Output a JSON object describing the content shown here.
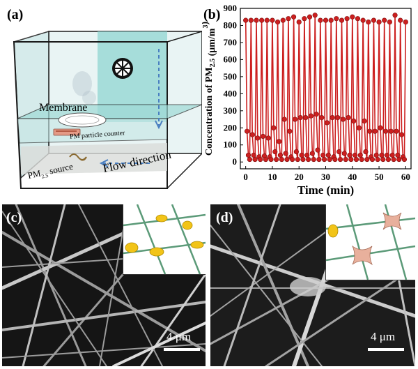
{
  "panels": {
    "a": {
      "label": "(a)",
      "membrane_label": "Membrane",
      "counter_label": "PM particle counter",
      "source_label_main": "PM",
      "source_label_sub": "2.5",
      "source_label_rest": " source",
      "flow_label": "Flow direction",
      "icons": [
        "fan-icon",
        "membrane-disc",
        "particle-counter-device",
        "pm-source-coil",
        "flow-arrows"
      ],
      "colors": {
        "box_edge": "#1a1a1a",
        "water": "#8fd6d2",
        "arrow": "#4a7fc1"
      }
    },
    "b": {
      "label": "(b)"
    },
    "c": {
      "label": "(c)",
      "scale": "4 μm"
    },
    "d": {
      "label": "(d)",
      "scale": "4 μm"
    }
  },
  "chart_data": {
    "type": "line",
    "xlabel": "Time (min)",
    "ylabel_main": "Concentration of PM",
    "ylabel_sub": "2.5",
    "ylabel_unit": " (μm/m",
    "ylabel_unit_sup": "3",
    "ylabel_close": ")",
    "xlim": [
      -2,
      62
    ],
    "ylim": [
      -40,
      900
    ],
    "xticks": [
      0,
      10,
      20,
      30,
      40,
      50,
      60
    ],
    "yticks": [
      0,
      100,
      200,
      300,
      400,
      500,
      600,
      700,
      800,
      900
    ],
    "grid": false,
    "legend": "none",
    "color": "#cc1f1f",
    "series": [
      {
        "x": [
          0,
          0.5,
          1,
          1.5,
          2,
          2.5,
          3,
          3.5,
          4,
          4.5,
          5,
          5.5,
          6,
          6.5,
          7,
          7.5,
          8,
          8.5,
          9,
          9.5,
          10,
          10.5,
          11,
          11.5,
          12,
          12.5,
          13,
          13.5,
          14,
          14.5,
          15,
          15.5,
          16,
          16.5,
          17,
          17.5,
          18,
          18.5,
          19,
          19.5,
          20,
          20.5,
          21,
          21.5,
          22,
          22.5,
          23,
          23.5,
          24,
          24.5,
          25,
          25.5,
          26,
          26.5,
          27,
          27.5,
          28,
          28.5,
          29,
          29.5,
          30,
          30.5,
          31,
          31.5,
          32,
          32.5,
          33,
          33.5,
          34,
          34.5,
          35,
          35.5,
          36,
          36.5,
          37,
          37.5,
          38,
          38.5,
          39,
          39.5,
          40,
          40.5,
          41,
          41.5,
          42,
          42.5,
          43,
          43.5,
          44,
          44.5,
          45,
          45.5,
          46,
          46.5,
          47,
          47.5,
          48,
          48.5,
          49,
          49.5,
          50,
          50.5,
          51,
          51.5,
          52,
          52.5,
          53,
          53.5,
          54,
          54.5,
          55,
          55.5,
          56,
          56.5,
          57,
          57.5,
          58,
          58.5,
          59,
          59.5,
          60
        ],
        "y": [
          830,
          180,
          40,
          15,
          830,
          160,
          40,
          15,
          830,
          140,
          30,
          15,
          830,
          150,
          35,
          15,
          830,
          140,
          30,
          15,
          830,
          200,
          60,
          15,
          820,
          120,
          40,
          15,
          830,
          250,
          50,
          15,
          840,
          180,
          30,
          15,
          850,
          250,
          60,
          15,
          820,
          260,
          40,
          15,
          840,
          260,
          40,
          15,
          850,
          270,
          50,
          15,
          860,
          280,
          70,
          15,
          830,
          260,
          40,
          15,
          830,
          230,
          40,
          15,
          830,
          260,
          30,
          15,
          840,
          260,
          60,
          15,
          830,
          250,
          50,
          15,
          840,
          260,
          40,
          15,
          850,
          240,
          40,
          15,
          840,
          200,
          40,
          15,
          830,
          240,
          60,
          15,
          820,
          180,
          30,
          15,
          830,
          180,
          40,
          15,
          820,
          200,
          40,
          15,
          830,
          180,
          40,
          15,
          820,
          180,
          40,
          15,
          860,
          180,
          40,
          15,
          830,
          160,
          30,
          15,
          820
        ]
      }
    ]
  }
}
